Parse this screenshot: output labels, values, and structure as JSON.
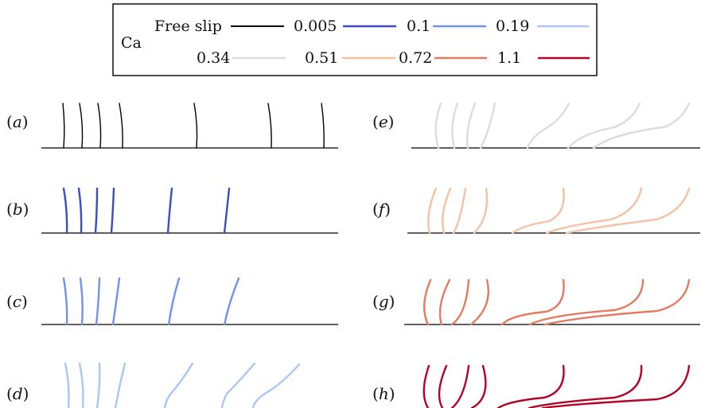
{
  "legend": {
    "title": "Ca",
    "entries": [
      {
        "label": "Free slip",
        "color": "#000000"
      },
      {
        "label": "0.005",
        "color": "#3a4cc0"
      },
      {
        "label": "0.1",
        "color": "#6f93ea"
      },
      {
        "label": "0.19",
        "color": "#a9c6f4"
      },
      {
        "label": "0.34",
        "color": "#dddcdc"
      },
      {
        "label": "0.51",
        "color": "#f5c1a4"
      },
      {
        "label": "0.72",
        "color": "#e47b60"
      },
      {
        "label": "1.1",
        "color": "#b40426"
      }
    ]
  },
  "panels": [
    {
      "letter": "a",
      "ca": "Free slip"
    },
    {
      "letter": "b",
      "ca": "0.005"
    },
    {
      "letter": "c",
      "ca": "0.1"
    },
    {
      "letter": "d",
      "ca": "0.19"
    },
    {
      "letter": "e",
      "ca": "0.34"
    },
    {
      "letter": "f",
      "ca": "0.51"
    },
    {
      "letter": "g",
      "ca": "0.72"
    },
    {
      "letter": "h",
      "ca": "1.1"
    }
  ]
}
